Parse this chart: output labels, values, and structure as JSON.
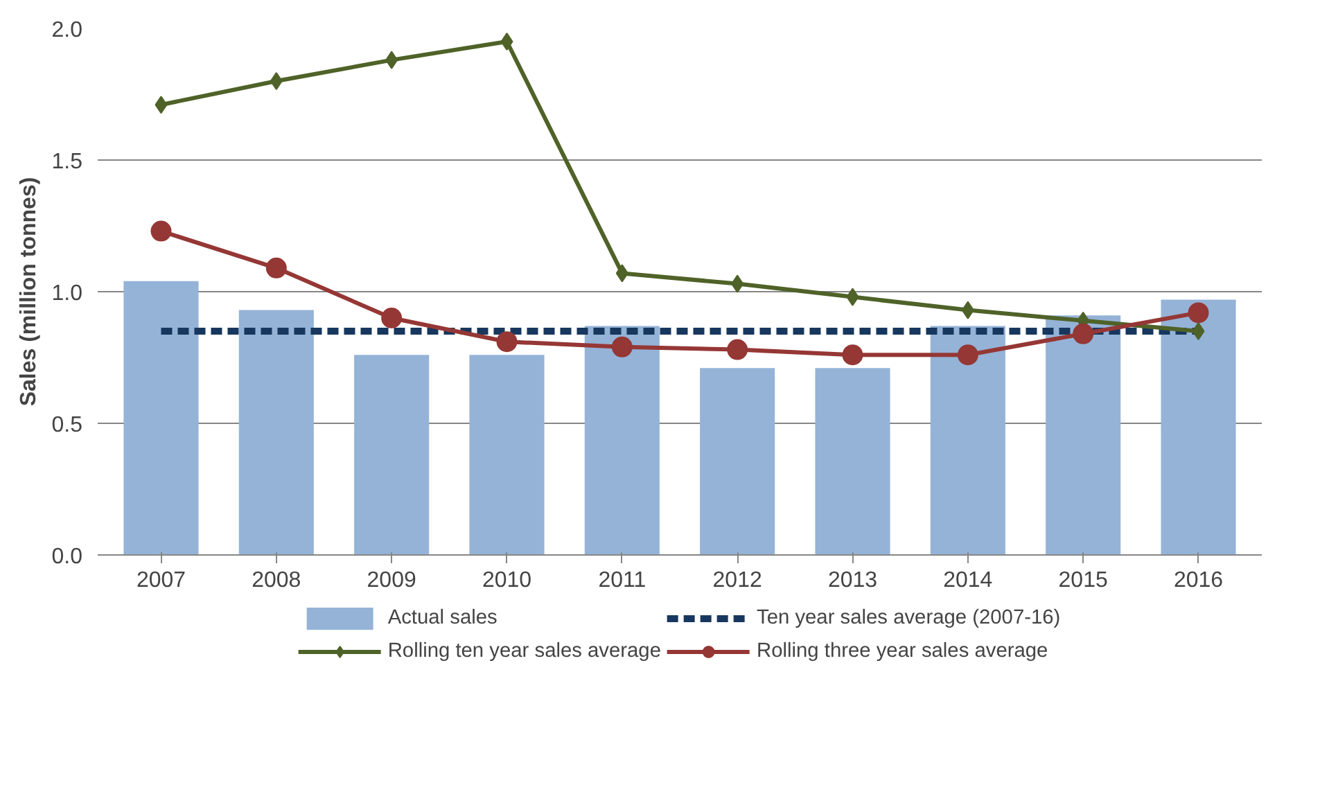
{
  "chart_data": {
    "type": "bar",
    "ylabel": "Sales (million tonnes)",
    "categories": [
      "2007",
      "2008",
      "2009",
      "2010",
      "2011",
      "2012",
      "2013",
      "2014",
      "2015",
      "2016"
    ],
    "series": [
      {
        "name": "Actual sales",
        "color": "#95b3d7",
        "values": [
          1.04,
          0.93,
          0.76,
          0.76,
          0.87,
          0.71,
          0.71,
          0.87,
          0.91,
          0.97
        ]
      },
      {
        "name": "Ten year sales average (2007-16)",
        "type": "line",
        "color": "#17375e",
        "line_style": "dashed",
        "marker": "none",
        "values": [
          0.85,
          0.85,
          0.85,
          0.85,
          0.85,
          0.85,
          0.85,
          0.85,
          0.85,
          0.85
        ]
      },
      {
        "name": "Rolling ten year sales average",
        "type": "line",
        "color": "#4f6228",
        "line_style": "solid",
        "marker": "diamond",
        "values": [
          1.71,
          1.8,
          1.88,
          1.95,
          1.07,
          1.03,
          0.98,
          0.93,
          0.89,
          0.85
        ]
      },
      {
        "name": "Rolling three year sales average",
        "type": "line",
        "color": "#953735",
        "line_style": "solid",
        "marker": "circle",
        "values": [
          1.23,
          1.09,
          0.9,
          0.81,
          0.79,
          0.78,
          0.76,
          0.76,
          0.84,
          0.92
        ]
      }
    ],
    "ylim": [
      0,
      2
    ],
    "yticks": [
      {
        "value": 0,
        "label": "0.0"
      },
      {
        "value": 0.5,
        "label": "0.5"
      },
      {
        "value": 1,
        "label": "1.0"
      },
      {
        "value": 1.5,
        "label": "1.5"
      },
      {
        "value": 2,
        "label": "2.0"
      }
    ],
    "grid": "y",
    "legend": "bottom"
  }
}
